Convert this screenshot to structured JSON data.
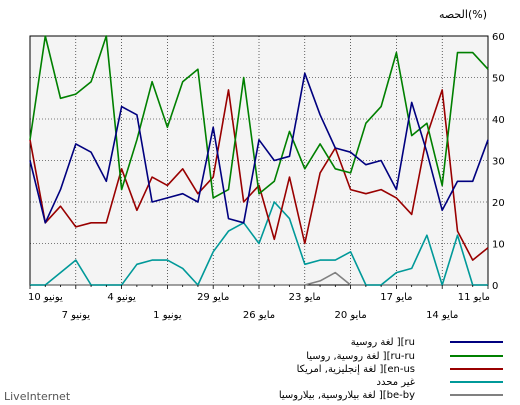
{
  "chart_data": {
    "type": "line",
    "ylabel": "الحصه(%)",
    "ylim": [
      0,
      60
    ],
    "yticks": [
      0,
      10,
      20,
      30,
      40,
      50,
      60
    ],
    "grid": true,
    "x_reversed": true,
    "x_tick_labels_upper": [
      "10 يونيو",
      "4 يونيو",
      "29 مايو",
      "23 مايو",
      "17 مايو",
      "11 مايو"
    ],
    "x_tick_labels_lower": [
      "7 يونيو",
      "1 يونيو",
      "26 مايو",
      "20 مايو",
      "14 مايو"
    ],
    "series": [
      {
        "name": "لغة روسية ][ru",
        "color": "#00007f",
        "values": [
          30,
          15,
          23,
          34,
          32,
          25,
          43,
          41,
          20,
          21,
          22,
          20,
          38,
          16,
          15,
          35,
          30,
          31,
          51,
          41,
          33,
          32,
          29,
          30,
          23,
          44,
          32,
          18,
          25,
          25,
          35
        ]
      },
      {
        "name": "لغة روسية, روسيا ][ru-ru",
        "color": "#008000",
        "values": [
          35,
          60,
          45,
          46,
          49,
          60,
          23,
          35,
          49,
          38,
          49,
          52,
          21,
          23,
          50,
          22,
          25,
          37,
          28,
          34,
          28,
          27,
          39,
          43,
          56,
          36,
          39,
          24,
          56,
          56,
          52
        ]
      },
      {
        "name": "لغة إنجليزية, امريكا ][en-us",
        "color": "#990000",
        "values": [
          35,
          15,
          19,
          14,
          15,
          15,
          28,
          18,
          26,
          24,
          28,
          22,
          26,
          47,
          20,
          24,
          11,
          26,
          10,
          27,
          33,
          23,
          22,
          23,
          21,
          17,
          36,
          47,
          13,
          6,
          9
        ]
      },
      {
        "name": "غير محدد",
        "color": "#009999",
        "values": [
          0,
          0,
          3,
          6,
          0,
          0,
          0,
          5,
          6,
          6,
          4,
          0,
          8,
          13,
          15,
          10,
          20,
          16,
          5,
          6,
          6,
          8,
          0,
          0,
          3,
          4,
          12,
          0,
          12,
          0,
          0
        ]
      },
      {
        "name": "لغة بيلاروسية, بيلاروسيا ][be-by",
        "color": "#808080",
        "values": [
          0,
          0,
          0,
          0,
          0,
          0,
          0,
          0,
          0,
          0,
          0,
          0,
          0,
          0,
          0,
          0,
          0,
          0,
          0,
          1,
          3,
          0,
          0,
          0,
          0,
          0,
          0,
          0,
          0,
          0,
          0
        ]
      }
    ]
  },
  "watermark": "LiveInternet"
}
